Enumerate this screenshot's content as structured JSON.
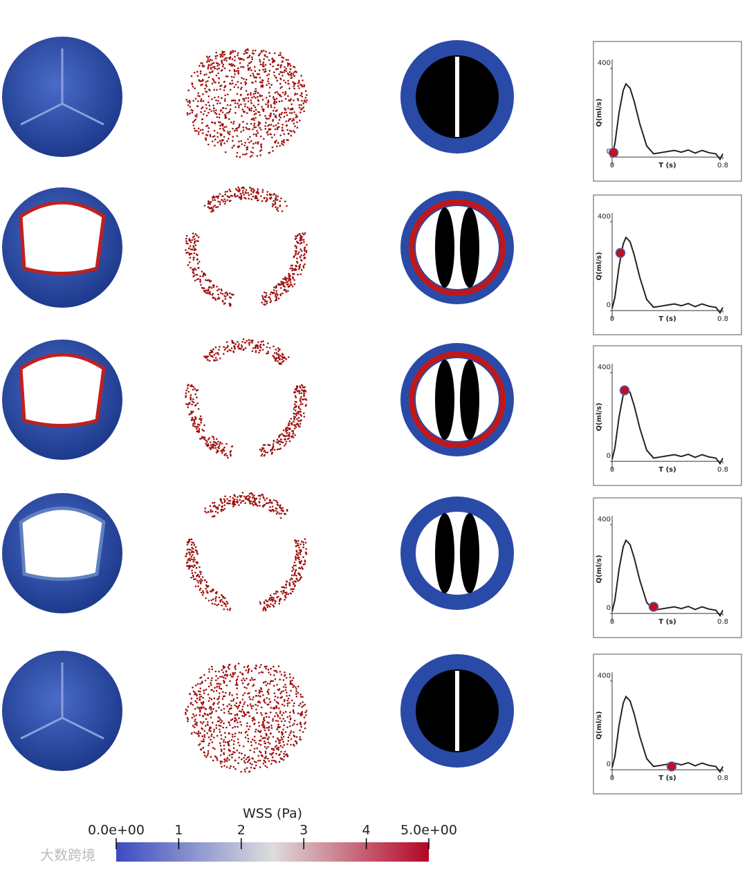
{
  "chart_data": [
    {
      "type": "line",
      "ylabel": "Q(ml/s)",
      "xlabel": "T (s)",
      "xlim": [
        0,
        0.8
      ],
      "ylim": [
        -40,
        440
      ],
      "xticks": [
        0,
        0.8
      ],
      "yticks": [
        0,
        400
      ],
      "color": "#222222",
      "x": [
        0,
        0.02,
        0.05,
        0.08,
        0.1,
        0.13,
        0.16,
        0.2,
        0.25,
        0.3,
        0.35,
        0.4,
        0.45,
        0.5,
        0.55,
        0.6,
        0.65,
        0.7,
        0.75,
        0.78,
        0.8
      ],
      "values": [
        10,
        60,
        200,
        300,
        330,
        310,
        250,
        150,
        50,
        15,
        20,
        25,
        30,
        22,
        32,
        18,
        30,
        20,
        15,
        -10,
        15
      ],
      "marker": {
        "x": 0.01,
        "y": 20,
        "color": "#c0101a"
      }
    },
    {
      "type": "line",
      "ylabel": "Q(ml/s)",
      "xlabel": "T (s)",
      "xlim": [
        0,
        0.8
      ],
      "ylim": [
        -40,
        440
      ],
      "xticks": [
        0,
        0.8
      ],
      "yticks": [
        0,
        400
      ],
      "color": "#222222",
      "x": [
        0,
        0.02,
        0.05,
        0.08,
        0.1,
        0.13,
        0.16,
        0.2,
        0.25,
        0.3,
        0.35,
        0.4,
        0.45,
        0.5,
        0.55,
        0.6,
        0.65,
        0.7,
        0.75,
        0.78,
        0.8
      ],
      "values": [
        10,
        60,
        200,
        300,
        330,
        310,
        250,
        150,
        50,
        15,
        20,
        25,
        30,
        22,
        32,
        18,
        30,
        20,
        15,
        -10,
        15
      ],
      "marker": {
        "x": 0.06,
        "y": 260,
        "color": "#c0101a"
      }
    },
    {
      "type": "line",
      "ylabel": "Q(ml/s)",
      "xlabel": "T (s)",
      "xlim": [
        0,
        0.8
      ],
      "ylim": [
        -40,
        440
      ],
      "xticks": [
        0,
        0.8
      ],
      "yticks": [
        0,
        400
      ],
      "color": "#222222",
      "x": [
        0,
        0.02,
        0.05,
        0.08,
        0.1,
        0.13,
        0.16,
        0.2,
        0.25,
        0.3,
        0.35,
        0.4,
        0.45,
        0.5,
        0.55,
        0.6,
        0.65,
        0.7,
        0.75,
        0.78,
        0.8
      ],
      "values": [
        10,
        60,
        200,
        300,
        330,
        310,
        250,
        150,
        50,
        15,
        20,
        25,
        30,
        22,
        32,
        18,
        30,
        20,
        15,
        -10,
        15
      ],
      "marker": {
        "x": 0.09,
        "y": 320,
        "color": "#c0101a"
      }
    },
    {
      "type": "line",
      "ylabel": "Q(ml/s)",
      "xlabel": "T (s)",
      "xlim": [
        0,
        0.8
      ],
      "ylim": [
        -40,
        440
      ],
      "xticks": [
        0,
        0.8
      ],
      "yticks": [
        0,
        400
      ],
      "color": "#222222",
      "x": [
        0,
        0.02,
        0.05,
        0.08,
        0.1,
        0.13,
        0.16,
        0.2,
        0.25,
        0.3,
        0.35,
        0.4,
        0.45,
        0.5,
        0.55,
        0.6,
        0.65,
        0.7,
        0.75,
        0.78,
        0.8
      ],
      "values": [
        10,
        60,
        200,
        300,
        330,
        310,
        250,
        150,
        50,
        15,
        20,
        25,
        30,
        22,
        32,
        18,
        30,
        20,
        15,
        -10,
        15
      ],
      "marker": {
        "x": 0.3,
        "y": 30,
        "color": "#c0101a"
      }
    },
    {
      "type": "line",
      "ylabel": "Q(ml/s)",
      "xlabel": "T (s)",
      "xlim": [
        0,
        0.8
      ],
      "ylim": [
        -40,
        440
      ],
      "xticks": [
        0,
        0.8
      ],
      "yticks": [
        0,
        400
      ],
      "color": "#222222",
      "x": [
        0,
        0.02,
        0.05,
        0.08,
        0.1,
        0.13,
        0.16,
        0.2,
        0.25,
        0.3,
        0.35,
        0.4,
        0.45,
        0.5,
        0.55,
        0.6,
        0.65,
        0.7,
        0.75,
        0.78,
        0.8
      ],
      "values": [
        10,
        60,
        200,
        300,
        330,
        310,
        250,
        150,
        50,
        15,
        20,
        25,
        30,
        22,
        32,
        18,
        30,
        20,
        15,
        -10,
        15
      ],
      "marker": {
        "x": 0.43,
        "y": 15,
        "color": "#c0101a"
      }
    },
    {
      "type": "colorbar",
      "title": "WSS (Pa)",
      "xlim": [
        0,
        5
      ],
      "xticks": [
        {
          "value": 0,
          "label": "0.0e+00"
        },
        1,
        2,
        3,
        4,
        {
          "value": 5,
          "label": "5.0e+00"
        }
      ],
      "colormap": [
        "#3b4cc0",
        "#dddddd",
        "#b40426"
      ]
    }
  ],
  "watermark": "大数跨境"
}
